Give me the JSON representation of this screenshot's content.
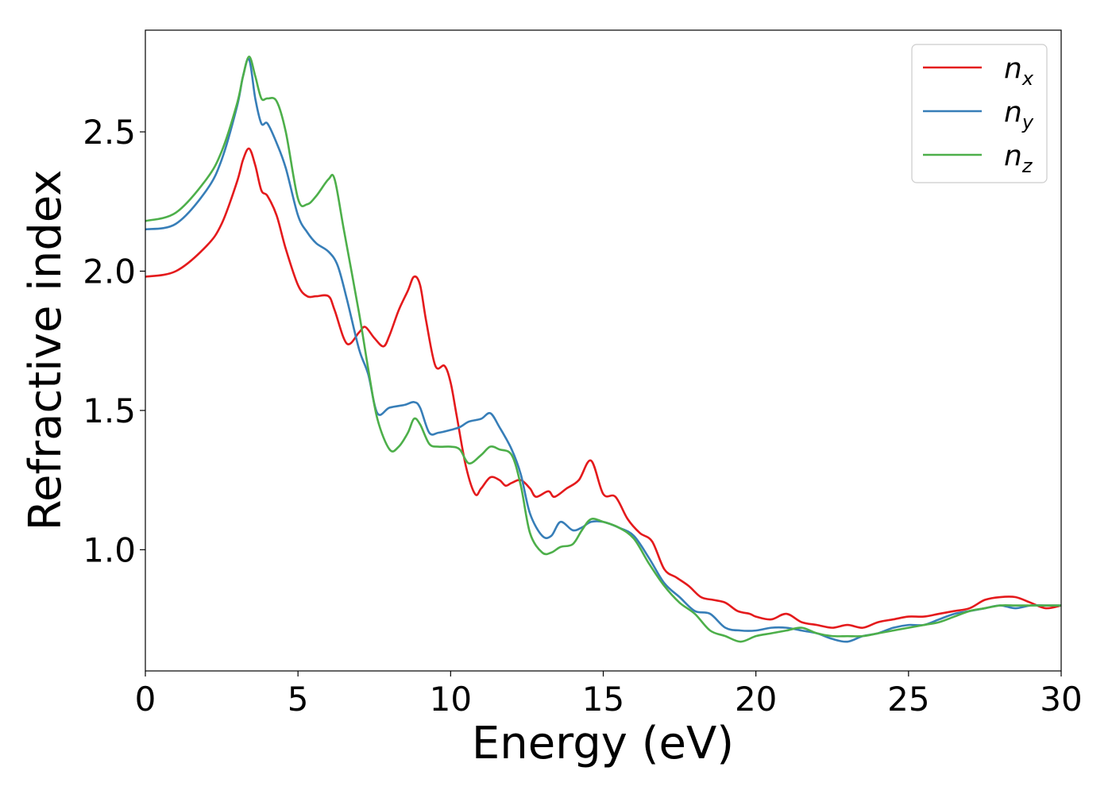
{
  "chart_data": {
    "type": "line",
    "xlabel": "Energy (eV)",
    "ylabel": "Refractive index",
    "xlim": [
      0,
      30
    ],
    "ylim": [
      0.565,
      2.865
    ],
    "xticks": [
      "0",
      "5",
      "10",
      "15",
      "20",
      "25",
      "30"
    ],
    "yticks": [
      "1.0",
      "1.5",
      "2.0",
      "2.5"
    ],
    "grid": false,
    "legend_position": "top-right",
    "series": [
      {
        "name": "n_x",
        "legend_base": "n",
        "legend_sub": "x",
        "color": "#e41a1c",
        "x": [
          0,
          1,
          2,
          2.5,
          3,
          3.2,
          3.4,
          3.6,
          3.8,
          4,
          4.3,
          4.6,
          5,
          5.3,
          5.6,
          6,
          6.2,
          6.6,
          7,
          7.2,
          7.5,
          7.8,
          8,
          8.3,
          8.6,
          8.8,
          9,
          9.2,
          9.5,
          9.8,
          10,
          10.2,
          10.5,
          10.8,
          11,
          11.3,
          11.6,
          11.8,
          12,
          12.3,
          12.6,
          12.8,
          13.2,
          13.4,
          13.8,
          14.2,
          14.6,
          15,
          15.4,
          15.8,
          16.2,
          16.6,
          17,
          17.4,
          17.8,
          18.2,
          18.6,
          19,
          19.4,
          19.8,
          20,
          20.5,
          21,
          21.5,
          22,
          22.5,
          23,
          23.5,
          24,
          24.5,
          25,
          25.5,
          26,
          26.5,
          27,
          27.5,
          28,
          28.5,
          29,
          29.5,
          30
        ],
        "y": [
          1.98,
          2.0,
          2.09,
          2.17,
          2.32,
          2.4,
          2.44,
          2.38,
          2.29,
          2.27,
          2.2,
          2.08,
          1.95,
          1.91,
          1.91,
          1.91,
          1.86,
          1.74,
          1.78,
          1.8,
          1.76,
          1.73,
          1.77,
          1.86,
          1.93,
          1.98,
          1.95,
          1.82,
          1.66,
          1.66,
          1.6,
          1.48,
          1.3,
          1.2,
          1.22,
          1.26,
          1.25,
          1.23,
          1.24,
          1.25,
          1.22,
          1.19,
          1.21,
          1.19,
          1.22,
          1.25,
          1.32,
          1.2,
          1.19,
          1.11,
          1.06,
          1.03,
          0.93,
          0.9,
          0.87,
          0.83,
          0.82,
          0.81,
          0.78,
          0.77,
          0.76,
          0.75,
          0.77,
          0.74,
          0.73,
          0.72,
          0.73,
          0.72,
          0.74,
          0.75,
          0.76,
          0.76,
          0.77,
          0.78,
          0.79,
          0.82,
          0.83,
          0.83,
          0.81,
          0.79,
          0.8
        ]
      },
      {
        "name": "n_y",
        "legend_base": "n",
        "legend_sub": "y",
        "color": "#377eb8",
        "x": [
          0,
          1,
          2,
          2.5,
          3,
          3.2,
          3.4,
          3.6,
          3.8,
          4,
          4.3,
          4.6,
          5,
          5.3,
          5.6,
          6,
          6.3,
          6.6,
          7,
          7.3,
          7.6,
          8,
          8.5,
          8.8,
          9,
          9.3,
          9.6,
          10,
          10.3,
          10.6,
          11,
          11.3,
          11.6,
          12,
          12.3,
          12.6,
          13,
          13.3,
          13.6,
          14,
          14.3,
          14.6,
          15,
          15.5,
          16,
          16.5,
          17,
          17.5,
          18,
          18.5,
          19,
          19.5,
          20,
          20.5,
          21,
          21.5,
          22,
          22.5,
          23,
          23.5,
          24,
          24.5,
          25,
          25.5,
          26,
          26.5,
          27,
          27.5,
          28,
          28.5,
          29,
          29.5,
          30
        ],
        "y": [
          2.15,
          2.17,
          2.29,
          2.4,
          2.59,
          2.7,
          2.76,
          2.62,
          2.53,
          2.53,
          2.46,
          2.37,
          2.2,
          2.14,
          2.1,
          2.07,
          2.02,
          1.9,
          1.72,
          1.63,
          1.49,
          1.51,
          1.52,
          1.53,
          1.51,
          1.42,
          1.42,
          1.43,
          1.44,
          1.46,
          1.47,
          1.49,
          1.44,
          1.36,
          1.27,
          1.13,
          1.05,
          1.05,
          1.1,
          1.07,
          1.08,
          1.1,
          1.1,
          1.08,
          1.05,
          0.97,
          0.88,
          0.83,
          0.78,
          0.77,
          0.72,
          0.71,
          0.71,
          0.72,
          0.72,
          0.71,
          0.7,
          0.68,
          0.67,
          0.69,
          0.7,
          0.72,
          0.73,
          0.73,
          0.75,
          0.77,
          0.78,
          0.79,
          0.8,
          0.79,
          0.8,
          0.8,
          0.8
        ]
      },
      {
        "name": "n_z",
        "legend_base": "n",
        "legend_sub": "z",
        "color": "#4daf4a",
        "x": [
          0,
          1,
          2,
          2.5,
          3,
          3.2,
          3.4,
          3.6,
          3.8,
          4,
          4.3,
          4.6,
          5,
          5.3,
          5.6,
          6,
          6.2,
          6.5,
          7,
          7.3,
          7.6,
          8,
          8.3,
          8.6,
          8.8,
          9,
          9.3,
          9.6,
          10,
          10.3,
          10.6,
          11,
          11.3,
          11.6,
          12,
          12.3,
          12.6,
          13,
          13.3,
          13.6,
          14,
          14.3,
          14.6,
          15,
          15.5,
          16,
          16.5,
          17,
          17.5,
          18,
          18.5,
          19,
          19.5,
          20,
          20.5,
          21,
          21.5,
          22,
          22.5,
          23,
          23.5,
          24,
          24.5,
          25,
          25.5,
          26,
          26.5,
          27,
          27.5,
          28,
          28.5,
          29,
          29.5,
          30
        ],
        "y": [
          2.18,
          2.21,
          2.33,
          2.43,
          2.6,
          2.7,
          2.77,
          2.7,
          2.62,
          2.62,
          2.61,
          2.5,
          2.26,
          2.24,
          2.27,
          2.33,
          2.33,
          2.15,
          1.85,
          1.65,
          1.47,
          1.36,
          1.37,
          1.42,
          1.47,
          1.45,
          1.38,
          1.37,
          1.37,
          1.36,
          1.31,
          1.34,
          1.37,
          1.36,
          1.34,
          1.23,
          1.06,
          0.99,
          0.99,
          1.01,
          1.02,
          1.07,
          1.11,
          1.1,
          1.08,
          1.04,
          0.95,
          0.87,
          0.81,
          0.77,
          0.71,
          0.69,
          0.67,
          0.69,
          0.7,
          0.71,
          0.72,
          0.7,
          0.69,
          0.69,
          0.69,
          0.7,
          0.71,
          0.72,
          0.73,
          0.74,
          0.76,
          0.78,
          0.79,
          0.8,
          0.8,
          0.8,
          0.8,
          0.8
        ]
      }
    ]
  }
}
